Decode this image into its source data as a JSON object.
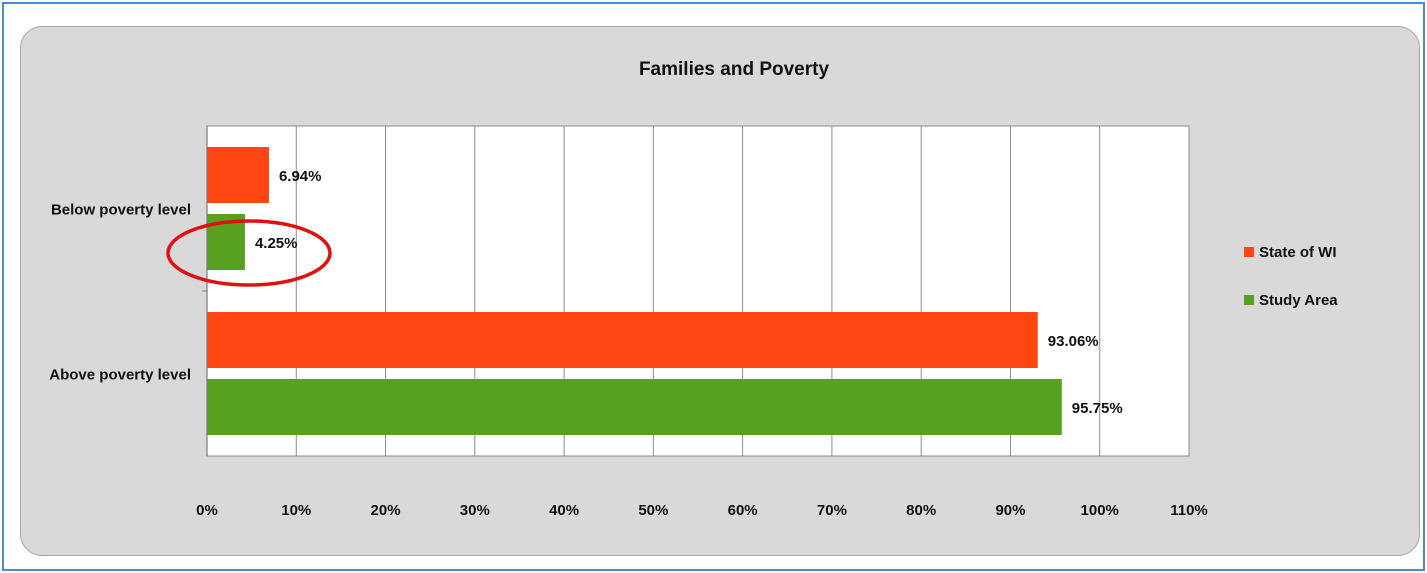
{
  "colors": {
    "state_of_wi": "#ff4512",
    "study_area": "#58a01f",
    "highlight_circle": "#e01010"
  },
  "chart_data": {
    "type": "bar",
    "orientation": "horizontal",
    "title": "Families and Poverty",
    "categories": [
      "Below poverty level",
      "Above poverty level"
    ],
    "series": [
      {
        "name": "State of WI",
        "values": [
          6.94,
          93.06
        ],
        "labels": [
          "6.94%",
          "93.06%"
        ]
      },
      {
        "name": "Study Area",
        "values": [
          4.25,
          95.75
        ],
        "labels": [
          "4.25%",
          "95.75%"
        ]
      }
    ],
    "xlim": [
      0,
      110
    ],
    "xticks": [
      "0%",
      "10%",
      "20%",
      "30%",
      "40%",
      "50%",
      "60%",
      "70%",
      "80%",
      "90%",
      "100%",
      "110%"
    ],
    "grid": true,
    "legend_position": "right",
    "highlight": "Below poverty level · Study Area"
  }
}
